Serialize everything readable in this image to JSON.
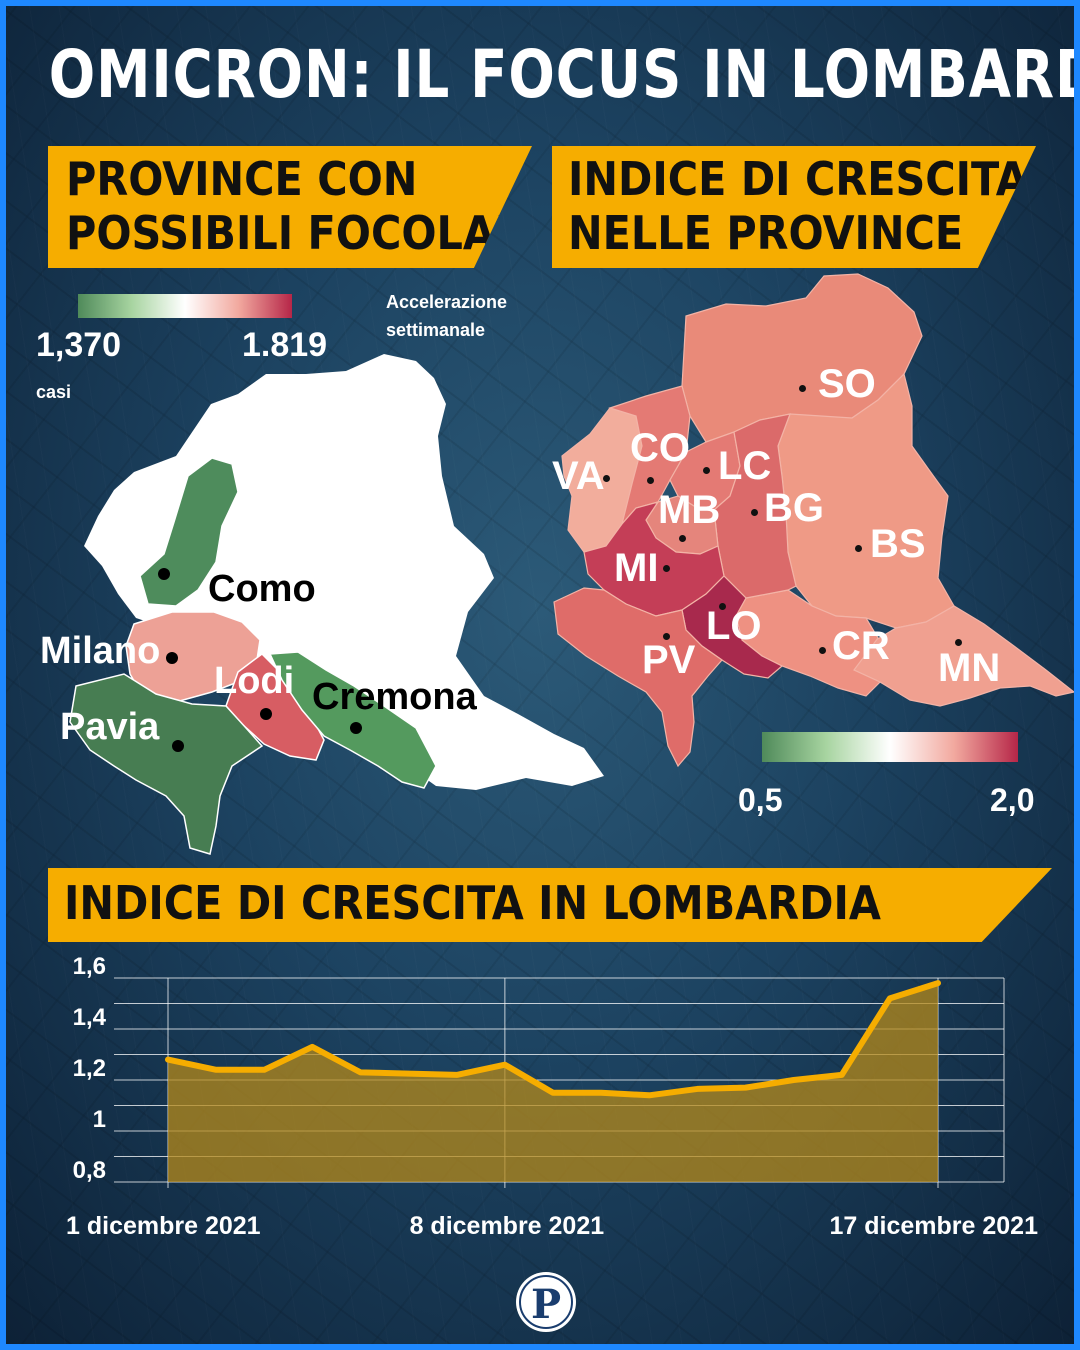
{
  "title": "OMICRON: IL FOCUS IN LOMBARDIA",
  "left_panel": {
    "banner_line1": "PROVINCE CON",
    "banner_line2": "POSSIBILI FOCOLAI",
    "legend_min": "1,370",
    "legend_max": "1.819",
    "legend_unit": "casi",
    "legend_note_line1": "Accelerazione",
    "legend_note_line2": "settimanale",
    "legend_colors": [
      "#4f8a5a",
      "#a7d4a0",
      "#ffffff",
      "#f2a99f",
      "#b62648"
    ],
    "provinces": [
      {
        "name": "Como",
        "color": "#4e8c5c"
      },
      {
        "name": "Milano",
        "color": "#eda196"
      },
      {
        "name": "Lodi",
        "color": "#d75d63"
      },
      {
        "name": "Cremona",
        "color": "#549a5e"
      },
      {
        "name": "Pavia",
        "color": "#477d52"
      }
    ]
  },
  "right_panel": {
    "banner_line1": "INDICE DI CRESCITA",
    "banner_line2": "NELLE PROVINCE",
    "legend_min": "0,5",
    "legend_max": "2,0",
    "legend_colors": [
      "#4f8a5a",
      "#a7d4a0",
      "#ffffff",
      "#f2a99f",
      "#b62648"
    ],
    "provinces": [
      {
        "code": "SO",
        "color": "#e98a79"
      },
      {
        "code": "VA",
        "color": "#f2ad9c"
      },
      {
        "code": "CO",
        "color": "#e47a74"
      },
      {
        "code": "LC",
        "color": "#e47a74"
      },
      {
        "code": "MB",
        "color": "#e5857c"
      },
      {
        "code": "BG",
        "color": "#db6a6a"
      },
      {
        "code": "BS",
        "color": "#ef9a86"
      },
      {
        "code": "MI",
        "color": "#c43e57"
      },
      {
        "code": "LO",
        "color": "#a8294d"
      },
      {
        "code": "PV",
        "color": "#df6c69"
      },
      {
        "code": "CR",
        "color": "#ee9182"
      },
      {
        "code": "MN",
        "color": "#f0a090"
      }
    ]
  },
  "bottom_panel": {
    "banner": "INDICE DI CRESCITA IN LOMBARDIA"
  },
  "chart_data": {
    "type": "area",
    "title": "INDICE DI CRESCITA IN LOMBARDIA",
    "x_tick_labels": [
      "1 dicembre 2021",
      "8 dicembre 2021",
      "17 dicembre 2021"
    ],
    "y_tick_labels": [
      "1,6",
      "1,4",
      "1,2",
      "1",
      "0,8"
    ],
    "ylim": [
      0.8,
      1.6
    ],
    "y_ticks": [
      1.6,
      1.4,
      1.2,
      1.0,
      0.8
    ],
    "x": [
      "1 dicembre 2021",
      "2 dicembre 2021",
      "3 dicembre 2021",
      "4 dicembre 2021",
      "5 dicembre 2021",
      "6 dicembre 2021",
      "7 dicembre 2021",
      "8 dicembre 2021",
      "9 dicembre 2021",
      "10 dicembre 2021",
      "11 dicembre 2021",
      "12 dicembre 2021",
      "13 dicembre 2021",
      "14 dicembre 2021",
      "15 dicembre 2021",
      "16 dicembre 2021",
      "17 dicembre 2021"
    ],
    "values": [
      1.28,
      1.24,
      1.24,
      1.33,
      1.23,
      1.225,
      1.22,
      1.26,
      1.15,
      1.15,
      1.14,
      1.165,
      1.17,
      1.2,
      1.22,
      1.52,
      1.58
    ],
    "grid": true,
    "line_color": "#f6ad00",
    "fill_color": "#b58a1a"
  }
}
